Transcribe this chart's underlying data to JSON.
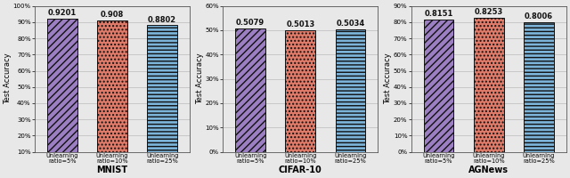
{
  "subplots": [
    {
      "title": "MNIST",
      "ylabel": "Test Accuracy",
      "ylim": [
        0.1,
        1.0
      ],
      "yticks": [
        0.1,
        0.2,
        0.3,
        0.4,
        0.5,
        0.6,
        0.7,
        0.8,
        0.9,
        1.0
      ],
      "ytick_labels": [
        "10%",
        "20%",
        "30%",
        "40%",
        "50%",
        "60%",
        "70%",
        "80%",
        "90%",
        "100%"
      ],
      "categories": [
        "Unlearning\nratio=5%",
        "Unlearning\nratio=10%",
        "Unlearning\nratio=25%"
      ],
      "values": [
        0.9201,
        0.908,
        0.8802
      ],
      "bar_colors": [
        "#9b7fc2",
        "#e07b6a",
        "#7bb3d9"
      ],
      "hatches": [
        "////",
        "....",
        "----"
      ]
    },
    {
      "title": "CIFAR-10",
      "ylabel": "Test Accuracy",
      "ylim": [
        0.0,
        0.6
      ],
      "yticks": [
        0.0,
        0.1,
        0.2,
        0.3,
        0.4,
        0.5,
        0.6
      ],
      "ytick_labels": [
        "0%",
        "10%",
        "20%",
        "30%",
        "40%",
        "50%",
        "60%"
      ],
      "categories": [
        "Unlearning\nratio=5%",
        "Unlearning\nratio=10%",
        "Unlearning\nratio=25%"
      ],
      "values": [
        0.5079,
        0.5013,
        0.5034
      ],
      "bar_colors": [
        "#9b7fc2",
        "#e07b6a",
        "#7bb3d9"
      ],
      "hatches": [
        "////",
        "....",
        "----"
      ]
    },
    {
      "title": "AGNews",
      "ylabel": "Test Accuracy",
      "ylim": [
        0.0,
        0.9
      ],
      "yticks": [
        0.0,
        0.1,
        0.2,
        0.3,
        0.4,
        0.5,
        0.6,
        0.7,
        0.8,
        0.9
      ],
      "ytick_labels": [
        "0%",
        "10%",
        "20%",
        "30%",
        "40%",
        "50%",
        "60%",
        "70%",
        "80%",
        "90%"
      ],
      "categories": [
        "Unlearning\nratio=5%",
        "Unlearning\nratio=10%",
        "Unlearning\nratio=25%"
      ],
      "values": [
        0.8151,
        0.8253,
        0.8006
      ],
      "bar_colors": [
        "#9b7fc2",
        "#e07b6a",
        "#7bb3d9"
      ],
      "hatches": [
        "////",
        "....",
        "----"
      ]
    }
  ],
  "fig_bgcolor": "#e8e8e8",
  "ax_bgcolor": "#e8e8e8",
  "bar_edgecolor": "#111111",
  "bar_width": 0.6,
  "label_fontsize": 4.8,
  "title_fontsize": 7,
  "ylabel_fontsize": 6,
  "annot_fontsize": 6,
  "tick_fontsize": 5,
  "grid_color": "#bbbbbb",
  "grid_alpha": 1.0,
  "grid_linewidth": 0.5
}
